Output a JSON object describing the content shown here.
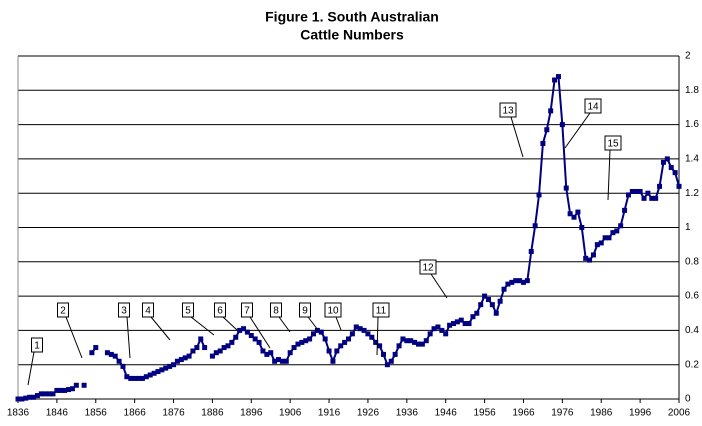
{
  "chart_data": {
    "type": "line",
    "title": [
      "Figure 1. South Australian",
      "Cattle Numbers"
    ],
    "x": [
      1836,
      1837,
      1838,
      1839,
      1840,
      1841,
      1842,
      1843,
      1844,
      1845,
      1846,
      1847,
      1848,
      1849,
      1850,
      1851,
      1852,
      1853,
      1854,
      1855,
      1856,
      1857,
      1858,
      1859,
      1860,
      1861,
      1862,
      1863,
      1864,
      1865,
      1866,
      1867,
      1868,
      1869,
      1870,
      1871,
      1872,
      1873,
      1874,
      1875,
      1876,
      1877,
      1878,
      1879,
      1880,
      1881,
      1882,
      1883,
      1884,
      1885,
      1886,
      1887,
      1888,
      1889,
      1890,
      1891,
      1892,
      1893,
      1894,
      1895,
      1896,
      1897,
      1898,
      1899,
      1900,
      1901,
      1902,
      1903,
      1904,
      1905,
      1906,
      1907,
      1908,
      1909,
      1910,
      1911,
      1912,
      1913,
      1914,
      1915,
      1916,
      1917,
      1918,
      1919,
      1920,
      1921,
      1922,
      1923,
      1924,
      1925,
      1926,
      1927,
      1928,
      1929,
      1930,
      1931,
      1932,
      1933,
      1934,
      1935,
      1936,
      1937,
      1938,
      1939,
      1940,
      1941,
      1942,
      1943,
      1944,
      1945,
      1946,
      1947,
      1948,
      1949,
      1950,
      1951,
      1952,
      1953,
      1954,
      1955,
      1956,
      1957,
      1958,
      1959,
      1960,
      1961,
      1962,
      1963,
      1964,
      1965,
      1966,
      1967,
      1968,
      1969,
      1970,
      1971,
      1972,
      1973,
      1974,
      1975,
      1976,
      1977,
      1978,
      1979,
      1980,
      1981,
      1982,
      1983,
      1984,
      1985,
      1986,
      1987,
      1988,
      1989,
      1990,
      1991,
      1992,
      1993,
      1994,
      1995,
      1996,
      1997,
      1998,
      1999,
      2000,
      2001,
      2002,
      2003,
      2004,
      2005,
      2006
    ],
    "values": [
      0,
      0,
      0.005,
      0.01,
      0.01,
      0.02,
      0.03,
      0.03,
      0.03,
      0.03,
      0.05,
      0.05,
      0.05,
      0.055,
      0.06,
      0.08,
      null,
      0.08,
      null,
      0.27,
      0.3,
      null,
      null,
      0.27,
      0.26,
      0.25,
      0.22,
      0.19,
      0.13,
      0.12,
      0.12,
      0.12,
      0.12,
      0.13,
      0.14,
      0.15,
      0.16,
      0.17,
      0.18,
      0.19,
      0.2,
      0.22,
      0.23,
      0.24,
      0.25,
      0.28,
      0.3,
      0.35,
      0.3,
      null,
      0.25,
      0.27,
      0.28,
      0.3,
      0.31,
      0.33,
      0.36,
      0.4,
      0.41,
      0.39,
      0.37,
      0.35,
      0.33,
      0.28,
      0.26,
      0.27,
      0.22,
      0.23,
      0.22,
      0.22,
      0.27,
      0.3,
      0.32,
      0.33,
      0.34,
      0.35,
      0.38,
      0.4,
      0.39,
      0.35,
      0.28,
      0.22,
      0.28,
      0.31,
      0.33,
      0.35,
      0.38,
      0.42,
      0.41,
      0.4,
      0.38,
      0.36,
      0.33,
      0.31,
      0.26,
      0.2,
      0.22,
      0.26,
      0.31,
      0.35,
      0.34,
      0.34,
      0.33,
      0.32,
      0.32,
      0.34,
      0.38,
      0.41,
      0.42,
      0.4,
      0.38,
      0.43,
      0.44,
      0.45,
      0.46,
      0.44,
      0.44,
      0.48,
      0.5,
      0.55,
      0.6,
      0.58,
      0.55,
      0.5,
      0.57,
      0.64,
      0.67,
      0.68,
      0.69,
      0.69,
      0.68,
      0.69,
      0.86,
      1.01,
      1.19,
      1.49,
      1.57,
      1.68,
      1.86,
      1.88,
      1.6,
      1.23,
      1.08,
      1.06,
      1.09,
      1.0,
      0.82,
      0.81,
      0.84,
      0.9,
      0.91,
      0.94,
      0.94,
      0.97,
      0.98,
      1.01,
      1.1,
      1.19,
      1.21,
      1.21,
      1.21,
      1.17,
      1.2,
      1.17,
      1.17,
      1.24,
      1.38,
      1.4,
      1.35,
      1.32,
      1.24
    ],
    "color": "#000080",
    "xlim": [
      1836,
      2006
    ],
    "xticks": [
      1836,
      1846,
      1856,
      1866,
      1876,
      1886,
      1896,
      1906,
      1916,
      1926,
      1936,
      1946,
      1956,
      1966,
      1976,
      1986,
      1996,
      2006
    ],
    "ylim": [
      0,
      2
    ],
    "yticks": [
      0,
      0.2,
      0.4,
      0.6,
      0.8,
      1,
      1.2,
      1.4,
      1.6,
      1.8,
      2
    ],
    "grid": true,
    "annotations": [
      "1",
      "2",
      "3",
      "4",
      "5",
      "6",
      "7",
      "8",
      "9",
      "10",
      "11",
      "12",
      "13",
      "14",
      "15"
    ]
  }
}
